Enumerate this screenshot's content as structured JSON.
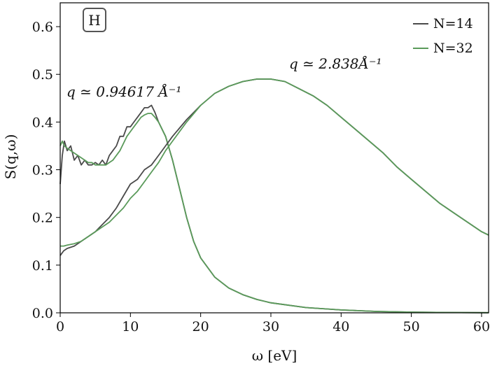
{
  "chart_data": {
    "type": "line",
    "panel_label": "H",
    "xlabel": "ω [eV]",
    "ylabel": "S(q,ω)",
    "xlim": [
      0,
      61
    ],
    "ylim": [
      0,
      0.65
    ],
    "xticks": [
      0,
      10,
      20,
      30,
      40,
      50,
      60
    ],
    "yticks": [
      0.0,
      0.1,
      0.2,
      0.3,
      0.4,
      0.5,
      0.6
    ],
    "grid": false,
    "legend": {
      "position": "top-right",
      "entries": [
        {
          "label": "N=14",
          "color": "#4a4a4a"
        },
        {
          "label": "N=32",
          "color": "#5a9a5a"
        }
      ]
    },
    "annotations": [
      {
        "text": "q ≃ 0.94617 Å⁻¹"
      },
      {
        "text": "q ≃ 2.838Å⁻¹"
      }
    ],
    "series": [
      {
        "name": "N=14",
        "q": "0.94617",
        "color": "#4a4a4a",
        "x": [
          0,
          0.3,
          0.6,
          1,
          1.5,
          2,
          2.5,
          3,
          3.5,
          4,
          4.5,
          5,
          5.5,
          6,
          6.5,
          7,
          7.5,
          8,
          8.5,
          9,
          9.5,
          10,
          10.5,
          11,
          11.5,
          12,
          12.5,
          13,
          13.5,
          14,
          15,
          16,
          17,
          18,
          19,
          20,
          22,
          24,
          26,
          28,
          30,
          35,
          40,
          45,
          50,
          55,
          61
        ],
        "y": [
          0.27,
          0.33,
          0.36,
          0.34,
          0.35,
          0.32,
          0.33,
          0.31,
          0.32,
          0.31,
          0.31,
          0.315,
          0.31,
          0.32,
          0.31,
          0.33,
          0.34,
          0.35,
          0.37,
          0.37,
          0.39,
          0.39,
          0.4,
          0.41,
          0.42,
          0.43,
          0.43,
          0.435,
          0.42,
          0.4,
          0.37,
          0.32,
          0.26,
          0.2,
          0.15,
          0.115,
          0.075,
          0.052,
          0.038,
          0.028,
          0.021,
          0.011,
          0.006,
          0.003,
          0.0015,
          0.0008,
          0.0003
        ]
      },
      {
        "name": "N=32",
        "q": "0.94617",
        "color": "#5a9a5a",
        "x": [
          0,
          0.3,
          0.6,
          1,
          1.5,
          2,
          2.5,
          3,
          3.5,
          4,
          4.5,
          5,
          5.5,
          6,
          6.5,
          7,
          7.5,
          8,
          8.5,
          9,
          9.5,
          10,
          10.5,
          11,
          11.5,
          12,
          12.5,
          13,
          13.5,
          14,
          15,
          16,
          17,
          18,
          19,
          20,
          22,
          24,
          26,
          28,
          30,
          35,
          40,
          45,
          50,
          55,
          61
        ],
        "y": [
          0.35,
          0.36,
          0.35,
          0.345,
          0.34,
          0.335,
          0.33,
          0.325,
          0.32,
          0.315,
          0.315,
          0.31,
          0.31,
          0.31,
          0.31,
          0.315,
          0.32,
          0.33,
          0.34,
          0.355,
          0.37,
          0.38,
          0.39,
          0.4,
          0.41,
          0.415,
          0.418,
          0.418,
          0.41,
          0.4,
          0.37,
          0.32,
          0.26,
          0.2,
          0.15,
          0.115,
          0.075,
          0.052,
          0.038,
          0.028,
          0.021,
          0.011,
          0.006,
          0.003,
          0.0015,
          0.0008,
          0.0003
        ]
      },
      {
        "name": "N=14",
        "q": "2.838",
        "color": "#4a4a4a",
        "x": [
          0,
          0.5,
          1,
          2,
          3,
          4,
          5,
          6,
          7,
          8,
          9,
          10,
          11,
          12,
          13,
          14,
          15,
          16,
          18,
          20,
          22,
          24,
          26,
          28,
          29,
          30,
          32,
          34,
          36,
          38,
          40,
          42,
          44,
          46,
          48,
          50,
          52,
          54,
          56,
          58,
          60,
          61
        ],
        "y": [
          0.12,
          0.13,
          0.135,
          0.14,
          0.15,
          0.16,
          0.17,
          0.185,
          0.2,
          0.22,
          0.245,
          0.27,
          0.28,
          0.3,
          0.31,
          0.33,
          0.35,
          0.37,
          0.405,
          0.435,
          0.46,
          0.475,
          0.485,
          0.49,
          0.49,
          0.49,
          0.485,
          0.47,
          0.455,
          0.435,
          0.41,
          0.385,
          0.36,
          0.335,
          0.305,
          0.28,
          0.255,
          0.23,
          0.21,
          0.19,
          0.17,
          0.163
        ]
      },
      {
        "name": "N=32",
        "q": "2.838",
        "color": "#5a9a5a",
        "x": [
          0,
          0.5,
          1,
          2,
          3,
          4,
          5,
          6,
          7,
          8,
          9,
          10,
          11,
          12,
          13,
          14,
          15,
          16,
          18,
          20,
          22,
          24,
          26,
          28,
          29,
          30,
          32,
          34,
          36,
          38,
          40,
          42,
          44,
          46,
          48,
          50,
          52,
          54,
          56,
          58,
          60,
          61
        ],
        "y": [
          0.14,
          0.14,
          0.142,
          0.145,
          0.15,
          0.16,
          0.17,
          0.18,
          0.19,
          0.205,
          0.22,
          0.24,
          0.255,
          0.275,
          0.295,
          0.315,
          0.34,
          0.36,
          0.4,
          0.435,
          0.46,
          0.475,
          0.485,
          0.49,
          0.49,
          0.49,
          0.485,
          0.47,
          0.455,
          0.435,
          0.41,
          0.385,
          0.36,
          0.335,
          0.305,
          0.28,
          0.255,
          0.23,
          0.21,
          0.19,
          0.17,
          0.163
        ]
      }
    ]
  }
}
